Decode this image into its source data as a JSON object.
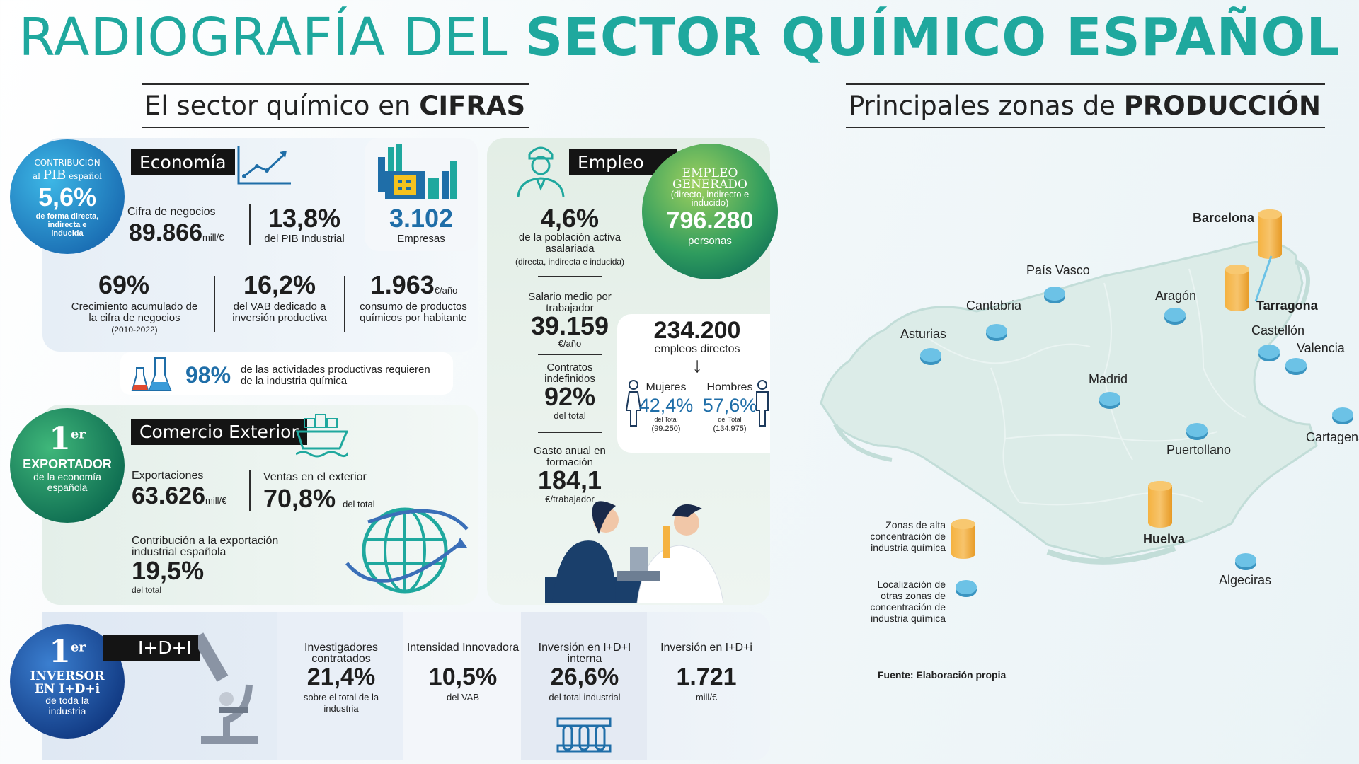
{
  "title": {
    "light": "RADIOGRAFÍA DEL",
    "bold": "SECTOR QUÍMICO ESPAÑOL"
  },
  "left_heading": {
    "light": "El sector químico en",
    "bold": "CIFRAS"
  },
  "right_heading": {
    "light": "Principales zonas de",
    "bold": "PRODUCCIÓN"
  },
  "economia": {
    "tag": "Economía",
    "badge": {
      "top": "CONTRIBUCIÓN",
      "mid1": "al",
      "pib": "PIB",
      "mid2": "español",
      "value": "5,6%",
      "bottom": "de forma directa, indirecta e inducida"
    },
    "cifra_label": "Cifra de negocios",
    "cifra_value": "89.866",
    "cifra_unit": "mill/€",
    "pib_ind_value": "13,8%",
    "pib_ind_label": "del PIB Industrial",
    "empresas_value": "3.102",
    "empresas_label": "Empresas",
    "crec_value": "69%",
    "crec_label": "Crecimiento acumulado de la cifra de negocios",
    "crec_period": "(2010-2022)",
    "vab_value": "16,2%",
    "vab_label": "del VAB dedicado a inversión productiva",
    "consumo_value": "1.963",
    "consumo_unit": "€/año",
    "consumo_label": "consumo de productos químicos por habitante",
    "act_value": "98%",
    "act_label": "de las actividades productivas requieren de la industria química"
  },
  "comercio": {
    "tag": "Comercio Exterior",
    "badge": {
      "rank": "1",
      "sup": "er",
      "title": "EXPORTADOR",
      "sub": "de la economía española"
    },
    "export_label": "Exportaciones",
    "export_value": "63.626",
    "export_unit": "mill/€",
    "ventas_label": "Ventas en el exterior",
    "ventas_value": "70,8%",
    "ventas_unit": "del total",
    "contrib_label": "Contribución a la exportación industrial española",
    "contrib_value": "19,5%",
    "contrib_unit": "del total"
  },
  "empleo": {
    "tag": "Empleo",
    "badge": {
      "title": "EMPLEO GENERADO",
      "sub": "(directo, indirecto e inducido)",
      "value": "796.280",
      "unit": "personas"
    },
    "pob_value": "4,6%",
    "pob_label": "de la población activa asalariada",
    "pob_note": "(directa, indirecta e inducida)",
    "salario_label": "Salario medio por trabajador",
    "salario_value": "39.159",
    "salario_unit": "€/año",
    "contratos_label": "Contratos indefinidos",
    "contratos_value": "92%",
    "contratos_unit": "del total",
    "gasto_label": "Gasto anual en formación",
    "gasto_value": "184,1",
    "gasto_unit": "€/trabajador",
    "directos_value": "234.200",
    "directos_label": "empleos directos",
    "arrow": "↓",
    "mujeres_label": "Mujeres",
    "mujeres_value": "42,4%",
    "mujeres_note": "del Total",
    "mujeres_count": "(99.250)",
    "hombres_label": "Hombres",
    "hombres_value": "57,6%",
    "hombres_note": "del Total",
    "hombres_count": "(134.975)"
  },
  "idi": {
    "tag": "I+D+I",
    "badge": {
      "rank": "1",
      "sup": "er",
      "title": "INVERSOR EN I+D+i",
      "sub": "de toda la industria"
    },
    "stats": [
      {
        "label": "Investigadores contratados",
        "value": "21,4%",
        "unit": "sobre el total de la industria"
      },
      {
        "label": "Intensidad Innovadora",
        "value": "10,5%",
        "unit": "del VAB"
      },
      {
        "label": "Inversión en I+D+I interna",
        "value": "26,6%",
        "unit": "del total industrial"
      },
      {
        "label": "Inversión en I+D+i",
        "value": "1.721",
        "unit": "mill/€"
      }
    ]
  },
  "map": {
    "locations": [
      {
        "name": "Barcelona",
        "kind": "high",
        "bold": true
      },
      {
        "name": "Tarragona",
        "kind": "high",
        "bold": true
      },
      {
        "name": "Huelva",
        "kind": "high",
        "bold": true
      },
      {
        "name": "País Vasco",
        "kind": "other",
        "bold": false
      },
      {
        "name": "Cantabria",
        "kind": "other",
        "bold": false
      },
      {
        "name": "Asturias",
        "kind": "other",
        "bold": false
      },
      {
        "name": "Aragón",
        "kind": "other",
        "bold": false
      },
      {
        "name": "Castellón",
        "kind": "other",
        "bold": false
      },
      {
        "name": "Valencia",
        "kind": "other",
        "bold": false
      },
      {
        "name": "Madrid",
        "kind": "other",
        "bold": false
      },
      {
        "name": "Puertollano",
        "kind": "other",
        "bold": false
      },
      {
        "name": "Cartagena",
        "kind": "other",
        "bold": false
      },
      {
        "name": "Algeciras",
        "kind": "other",
        "bold": false
      }
    ],
    "legend_high": "Zonas de alta concentración de industria química",
    "legend_other": "Localización de otras zonas de concentración de industria química",
    "source": "Fuente: Elaboración propia",
    "colors": {
      "high": "#f5b240",
      "other": "#6cc2e6",
      "land": "#dcece8"
    }
  },
  "colors": {
    "teal": "#1fa89e",
    "blue": "#1f6ea8",
    "dark": "#141414"
  }
}
